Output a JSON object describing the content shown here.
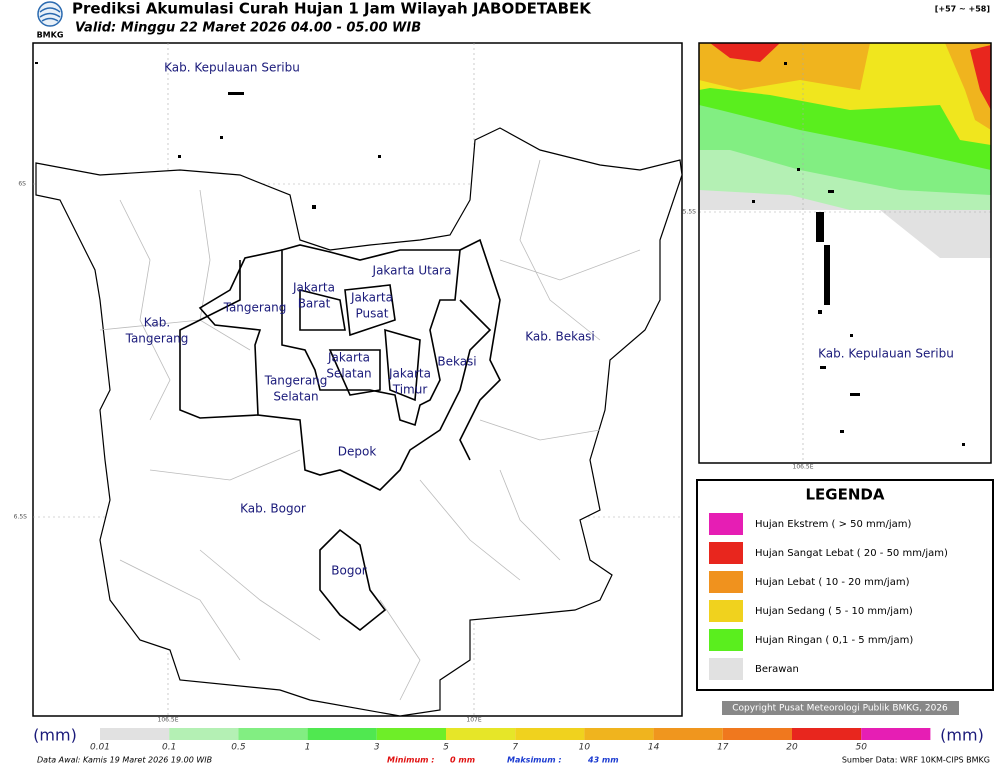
{
  "header": {
    "logo": "BMKG",
    "title": "Prediksi Akumulasi Curah Hujan 1 Jam Wilayah JABODETABEK",
    "valid": "Valid: Minggu 22 Maret 2026 04.00 - 05.00 WIB",
    "range": "[+57 ~ +58]"
  },
  "main_map": {
    "labels": [
      [
        "Kab. Kepulauan Seribu"
      ],
      [
        "Jakarta Utara"
      ],
      [
        "Jakarta",
        "Barat"
      ],
      [
        "Jakarta",
        "Pusat"
      ],
      [
        "Tangerang"
      ],
      [
        "Kab.",
        "Tangerang"
      ],
      [
        "Kab. Bekasi"
      ],
      [
        "Jakarta",
        "Selatan"
      ],
      [
        "Bekasi"
      ],
      [
        "Jakarta",
        "Timur"
      ],
      [
        "Tangerang",
        "Selatan"
      ],
      [
        "Depok"
      ],
      [
        "Kab. Bogor"
      ],
      [
        "Bogor"
      ]
    ],
    "coords": [
      "6S",
      "6.5S",
      "106.5E",
      "107E"
    ]
  },
  "inset_map": {
    "label": "Kab. Kepulauan Seribu",
    "coords": [
      "5.5S",
      "106.5E"
    ]
  },
  "legend": {
    "title": "LEGENDA",
    "items": [
      {
        "label": "Hujan Ekstrem ( > 50 mm/jam)",
        "color": "#e61eb4"
      },
      {
        "label": "Hujan Sangat Lebat ( 20 - 50 mm/jam)",
        "color": "#e8261e"
      },
      {
        "label": "Hujan Lebat ( 10 - 20 mm/jam)",
        "color": "#f0921e"
      },
      {
        "label": "Hujan Sedang ( 5 - 10 mm/jam)",
        "color": "#f0d21e"
      },
      {
        "label": "Hujan Ringan ( 0,1 - 5 mm/jam)",
        "color": "#5aee1e"
      },
      {
        "label": "Berawan",
        "color": "#e1e1e1"
      }
    ]
  },
  "copyright": "Copyright Pusat Meteorologi Publik BMKG, 2026",
  "scale": {
    "unit": "(mm)",
    "steps": [
      {
        "label": "0.01",
        "color": "#e1e1e1"
      },
      {
        "label": "0.1",
        "color": "#b4f0b4"
      },
      {
        "label": "0.5",
        "color": "#82ee82"
      },
      {
        "label": "1",
        "color": "#50e850"
      },
      {
        "label": "3",
        "color": "#6eee28"
      },
      {
        "label": "5",
        "color": "#e6e628"
      },
      {
        "label": "7",
        "color": "#f0d21e"
      },
      {
        "label": "10",
        "color": "#f0b41e"
      },
      {
        "label": "14",
        "color": "#f0961e"
      },
      {
        "label": "17",
        "color": "#f0781e"
      },
      {
        "label": "20",
        "color": "#e8261e"
      },
      {
        "label": "50",
        "color": "#e61eb4"
      }
    ]
  },
  "footer": {
    "data_awal": "Data Awal: Kamis 19 Maret 2026 19.00 WIB",
    "min_label": "Minimum :",
    "min_value": "0 mm",
    "max_label": "Maksimum :",
    "max_value": "43 mm",
    "source": "Sumber Data: WRF 10KM-CIPS BMKG"
  }
}
